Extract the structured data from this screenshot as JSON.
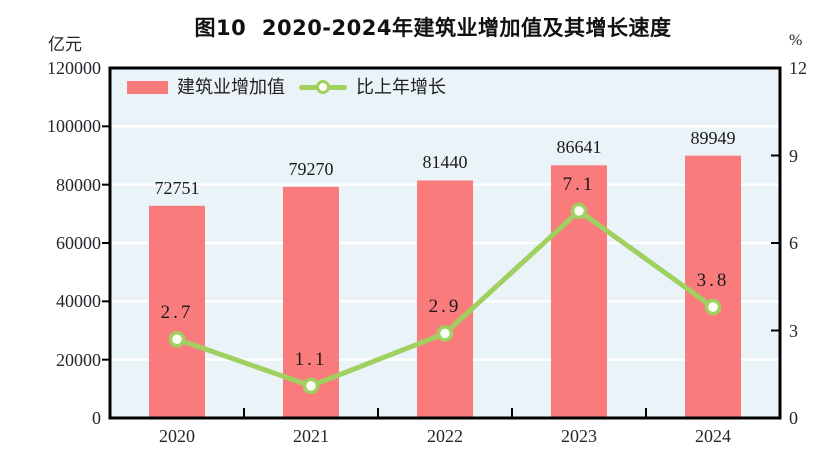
{
  "page": {
    "background": "#ffffff"
  },
  "chart": {
    "title": "图10  2020-2024年建筑业增加值及其增长速度",
    "left_unit": "亿元",
    "right_unit": "%"
  },
  "legend": {
    "bar_label": "建筑业增加值",
    "line_label": "比上年增长"
  },
  "chart_data": {
    "type": "bar",
    "subtype": "bar+line dual-axis",
    "title": "图10  2020-2024年建筑业增加值及其增长速度",
    "categories": [
      "2020",
      "2021",
      "2022",
      "2023",
      "2024"
    ],
    "series": [
      {
        "name": "建筑业增加值",
        "type": "bar",
        "axis": "left",
        "values": [
          72751,
          79270,
          81440,
          86641,
          89949
        ],
        "color": "#f97b7b"
      },
      {
        "name": "比上年增长",
        "type": "line",
        "axis": "right",
        "values": [
          2.7,
          1.1,
          2.9,
          7.1,
          3.8
        ],
        "color": "#a0d060",
        "marker_fill": "#fdfff5"
      }
    ],
    "left_axis": {
      "label": "亿元",
      "min": 0,
      "max": 120000,
      "ticks": [
        0,
        20000,
        40000,
        60000,
        80000,
        100000,
        120000
      ]
    },
    "right_axis": {
      "label": "%",
      "min": 0,
      "max": 12,
      "ticks": [
        0,
        3,
        6,
        9,
        12
      ]
    },
    "plot_bg": "#eaf3f8",
    "grid_color": "#ffffff",
    "frame_color": "#000000",
    "grid": "horizontal only",
    "legend_position": "top-left inside plot"
  }
}
